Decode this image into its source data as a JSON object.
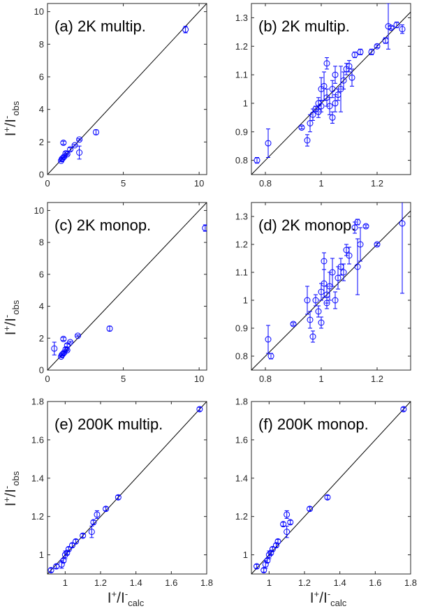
{
  "figure": {
    "ylabel": {
      "base": "I",
      "sup1": "+",
      "mid": "/I",
      "sup2": "-",
      "sub": "obs"
    },
    "xlabel": {
      "base": "I",
      "sup1": "+",
      "mid": "/I",
      "sup2": "-",
      "sub": "calc"
    },
    "marker_color": "#0000ff",
    "line_color": "#000000"
  },
  "chart_data": [
    {
      "type": "scatter",
      "title": "(a)   2K multip.",
      "xlim": [
        0,
        10.5
      ],
      "ylim": [
        0,
        10.5
      ],
      "xticks": [
        0,
        5,
        10
      ],
      "yticks": [
        0,
        2,
        4,
        6,
        8,
        10
      ],
      "tick_labels_x": [
        "0",
        "5",
        "10"
      ],
      "tick_labels_y": [
        "0",
        "2",
        "4",
        "6",
        "8",
        "10"
      ],
      "diagonal": true,
      "points": [
        {
          "x": 9.1,
          "y": 8.9,
          "err": 0.2
        },
        {
          "x": 3.2,
          "y": 2.6,
          "err": 0.15
        },
        {
          "x": 2.1,
          "y": 2.15,
          "err": 0.05
        },
        {
          "x": 2.1,
          "y": 1.35,
          "err": 0.4
        },
        {
          "x": 1.8,
          "y": 1.8,
          "err": 0.05
        },
        {
          "x": 1.5,
          "y": 1.55,
          "err": 0.1
        },
        {
          "x": 1.05,
          "y": 1.95,
          "err": 0.1
        },
        {
          "x": 1.2,
          "y": 1.3,
          "err": 0.1
        },
        {
          "x": 1.1,
          "y": 1.1,
          "err": 0.05
        },
        {
          "x": 1.0,
          "y": 1.0,
          "err": 0.05
        },
        {
          "x": 0.95,
          "y": 0.95,
          "err": 0.05
        },
        {
          "x": 0.9,
          "y": 0.85,
          "err": 0.05
        },
        {
          "x": 1.3,
          "y": 1.25,
          "err": 0.05
        }
      ]
    },
    {
      "type": "scatter",
      "title": "(b)   2K multip.",
      "xlim": [
        0.75,
        1.32
      ],
      "ylim": [
        0.75,
        1.35
      ],
      "xticks": [
        0.8,
        1.0,
        1.2
      ],
      "yticks": [
        0.8,
        0.9,
        1.0,
        1.1,
        1.2,
        1.3
      ],
      "tick_labels_x": [
        "0.8",
        "1",
        "1.2"
      ],
      "tick_labels_y": [
        "0.8",
        "0.9",
        "1",
        "1.1",
        "1.2",
        "1.3"
      ],
      "diagonal": true,
      "points": [
        {
          "x": 0.77,
          "y": 0.8,
          "err": 0.01
        },
        {
          "x": 0.81,
          "y": 0.86,
          "err": 0.05
        },
        {
          "x": 0.93,
          "y": 0.915,
          "err": 0.005
        },
        {
          "x": 0.95,
          "y": 0.87,
          "err": 0.02
        },
        {
          "x": 0.96,
          "y": 0.93,
          "err": 0.03
        },
        {
          "x": 0.97,
          "y": 0.96,
          "err": 0.02
        },
        {
          "x": 0.98,
          "y": 0.98,
          "err": 0.01
        },
        {
          "x": 0.99,
          "y": 1.0,
          "err": 0.02
        },
        {
          "x": 1.0,
          "y": 0.99,
          "err": 0.02
        },
        {
          "x": 1.01,
          "y": 1.06,
          "err": 0.05
        },
        {
          "x": 1.02,
          "y": 1.14,
          "err": 0.02
        },
        {
          "x": 1.02,
          "y": 1.02,
          "err": 0.03
        },
        {
          "x": 1.03,
          "y": 0.99,
          "err": 0.03
        },
        {
          "x": 1.04,
          "y": 0.95,
          "err": 0.02
        },
        {
          "x": 1.04,
          "y": 1.05,
          "err": 0.03
        },
        {
          "x": 1.05,
          "y": 1.1,
          "err": 0.03
        },
        {
          "x": 1.06,
          "y": 1.03,
          "err": 0.02
        },
        {
          "x": 1.07,
          "y": 1.05,
          "err": 0.08
        },
        {
          "x": 1.08,
          "y": 1.08,
          "err": 0.03
        },
        {
          "x": 1.09,
          "y": 1.12,
          "err": 0.02
        },
        {
          "x": 1.1,
          "y": 1.13,
          "err": 0.02
        },
        {
          "x": 1.11,
          "y": 1.09,
          "err": 0.03
        },
        {
          "x": 1.12,
          "y": 1.17,
          "err": 0.01
        },
        {
          "x": 1.14,
          "y": 1.18,
          "err": 0.01
        },
        {
          "x": 1.18,
          "y": 1.18,
          "err": 0.01
        },
        {
          "x": 1.2,
          "y": 1.2,
          "err": 0.005
        },
        {
          "x": 1.23,
          "y": 1.22,
          "err": 0.01
        },
        {
          "x": 1.24,
          "y": 1.27,
          "err": 0.08
        },
        {
          "x": 1.25,
          "y": 1.265,
          "err": 0.005
        },
        {
          "x": 1.27,
          "y": 1.275,
          "err": 0.01
        },
        {
          "x": 1.29,
          "y": 1.26,
          "err": 0.015
        },
        {
          "x": 1.0,
          "y": 1.05,
          "err": 0.04
        },
        {
          "x": 0.99,
          "y": 0.97,
          "err": 0.02
        },
        {
          "x": 1.05,
          "y": 1.0,
          "err": 0.03
        }
      ]
    },
    {
      "type": "scatter",
      "title": "(c)   2K monop.",
      "xlim": [
        0,
        10.5
      ],
      "ylim": [
        0,
        10.5
      ],
      "xticks": [
        0,
        5,
        10
      ],
      "yticks": [
        0,
        2,
        4,
        6,
        8,
        10
      ],
      "tick_labels_x": [
        "0",
        "5",
        "10"
      ],
      "tick_labels_y": [
        "0",
        "2",
        "4",
        "6",
        "8",
        "10"
      ],
      "diagonal": true,
      "points": [
        {
          "x": 10.4,
          "y": 8.9,
          "err": 0.2
        },
        {
          "x": 4.1,
          "y": 2.6,
          "err": 0.15
        },
        {
          "x": 2.0,
          "y": 2.15,
          "err": 0.05
        },
        {
          "x": 0.45,
          "y": 1.35,
          "err": 0.4
        },
        {
          "x": 1.5,
          "y": 1.75,
          "err": 0.05
        },
        {
          "x": 1.3,
          "y": 1.55,
          "err": 0.1
        },
        {
          "x": 1.05,
          "y": 1.95,
          "err": 0.1
        },
        {
          "x": 1.2,
          "y": 1.3,
          "err": 0.1
        },
        {
          "x": 1.1,
          "y": 1.1,
          "err": 0.05
        },
        {
          "x": 1.0,
          "y": 1.0,
          "err": 0.05
        },
        {
          "x": 0.95,
          "y": 0.95,
          "err": 0.05
        },
        {
          "x": 0.9,
          "y": 0.85,
          "err": 0.05
        },
        {
          "x": 1.3,
          "y": 1.25,
          "err": 0.05
        }
      ]
    },
    {
      "type": "scatter",
      "title": "(d)   2K monop.",
      "xlim": [
        0.75,
        1.32
      ],
      "ylim": [
        0.75,
        1.35
      ],
      "xticks": [
        0.8,
        1.0,
        1.2
      ],
      "yticks": [
        0.8,
        0.9,
        1.0,
        1.1,
        1.2,
        1.3
      ],
      "tick_labels_x": [
        "0.8",
        "1",
        "1.2"
      ],
      "tick_labels_y": [
        "0.8",
        "0.9",
        "1",
        "1.1",
        "1.2",
        "1.3"
      ],
      "diagonal": true,
      "points": [
        {
          "x": 0.81,
          "y": 0.86,
          "err": 0.05
        },
        {
          "x": 0.82,
          "y": 0.8,
          "err": 0.01
        },
        {
          "x": 0.9,
          "y": 0.915,
          "err": 0.005
        },
        {
          "x": 0.95,
          "y": 1.0,
          "err": 0.05
        },
        {
          "x": 0.96,
          "y": 0.93,
          "err": 0.03
        },
        {
          "x": 0.97,
          "y": 0.87,
          "err": 0.02
        },
        {
          "x": 0.98,
          "y": 1.0,
          "err": 0.02
        },
        {
          "x": 0.99,
          "y": 0.96,
          "err": 0.02
        },
        {
          "x": 1.0,
          "y": 0.92,
          "err": 0.02
        },
        {
          "x": 1.01,
          "y": 1.06,
          "err": 0.05
        },
        {
          "x": 1.01,
          "y": 1.14,
          "err": 0.03
        },
        {
          "x": 1.02,
          "y": 1.02,
          "err": 0.03
        },
        {
          "x": 1.03,
          "y": 1.05,
          "err": 0.05
        },
        {
          "x": 1.04,
          "y": 1.1,
          "err": 0.05
        },
        {
          "x": 1.05,
          "y": 1.0,
          "err": 0.03
        },
        {
          "x": 1.06,
          "y": 1.08,
          "err": 0.04
        },
        {
          "x": 1.07,
          "y": 1.12,
          "err": 0.03
        },
        {
          "x": 1.08,
          "y": 1.1,
          "err": 0.03
        },
        {
          "x": 1.09,
          "y": 1.18,
          "err": 0.02
        },
        {
          "x": 1.1,
          "y": 1.16,
          "err": 0.03
        },
        {
          "x": 1.12,
          "y": 1.26,
          "err": 0.02
        },
        {
          "x": 1.13,
          "y": 1.28,
          "err": 0.01
        },
        {
          "x": 1.13,
          "y": 1.12,
          "err": 0.1
        },
        {
          "x": 1.14,
          "y": 1.2,
          "err": 0.06
        },
        {
          "x": 1.16,
          "y": 1.265,
          "err": 0.005
        },
        {
          "x": 1.2,
          "y": 1.2,
          "err": 0.005
        },
        {
          "x": 1.29,
          "y": 1.275,
          "err": 0.25
        },
        {
          "x": 1.0,
          "y": 1.03,
          "err": 0.03
        },
        {
          "x": 1.02,
          "y": 0.99,
          "err": 0.02
        }
      ]
    },
    {
      "type": "scatter",
      "title": "(e)   200K multip.",
      "xlim": [
        0.9,
        1.8
      ],
      "ylim": [
        0.9,
        1.8
      ],
      "xticks": [
        1.0,
        1.2,
        1.4,
        1.6,
        1.8
      ],
      "yticks": [
        1.0,
        1.2,
        1.4,
        1.6,
        1.8
      ],
      "tick_labels_x": [
        "1",
        "1.2",
        "1.4",
        "1.6",
        "1.8"
      ],
      "tick_labels_y": [
        "1",
        "1.2",
        "1.4",
        "1.6",
        "1.8"
      ],
      "diagonal": true,
      "points": [
        {
          "x": 1.76,
          "y": 1.76,
          "err": 0.01
        },
        {
          "x": 1.3,
          "y": 1.3,
          "err": 0.01
        },
        {
          "x": 1.23,
          "y": 1.24,
          "err": 0.01
        },
        {
          "x": 1.18,
          "y": 1.21,
          "err": 0.02
        },
        {
          "x": 1.16,
          "y": 1.17,
          "err": 0.01
        },
        {
          "x": 1.15,
          "y": 1.12,
          "err": 0.03
        },
        {
          "x": 1.1,
          "y": 1.1,
          "err": 0.01
        },
        {
          "x": 1.06,
          "y": 1.07,
          "err": 0.01
        },
        {
          "x": 1.04,
          "y": 1.05,
          "err": 0.01
        },
        {
          "x": 1.02,
          "y": 1.03,
          "err": 0.01
        },
        {
          "x": 1.0,
          "y": 1.0,
          "err": 0.02
        },
        {
          "x": 0.99,
          "y": 0.97,
          "err": 0.01
        },
        {
          "x": 0.98,
          "y": 0.95,
          "err": 0.02
        },
        {
          "x": 0.95,
          "y": 0.94,
          "err": 0.01
        },
        {
          "x": 0.92,
          "y": 0.92,
          "err": 0.01
        },
        {
          "x": 1.01,
          "y": 1.01,
          "err": 0.01
        }
      ]
    },
    {
      "type": "scatter",
      "title": "(f)   200K monop.",
      "xlim": [
        0.9,
        1.8
      ],
      "ylim": [
        0.9,
        1.8
      ],
      "xticks": [
        1.0,
        1.2,
        1.4,
        1.6,
        1.8
      ],
      "yticks": [
        1.0,
        1.2,
        1.4,
        1.6,
        1.8
      ],
      "tick_labels_x": [
        "1",
        "1.2",
        "1.4",
        "1.6",
        "1.8"
      ],
      "tick_labels_y": [
        "1",
        "1.2",
        "1.4",
        "1.6",
        "1.8"
      ],
      "diagonal": true,
      "points": [
        {
          "x": 1.76,
          "y": 1.76,
          "err": 0.01
        },
        {
          "x": 1.33,
          "y": 1.3,
          "err": 0.01
        },
        {
          "x": 1.23,
          "y": 1.24,
          "err": 0.01
        },
        {
          "x": 1.1,
          "y": 1.21,
          "err": 0.02
        },
        {
          "x": 1.12,
          "y": 1.17,
          "err": 0.01
        },
        {
          "x": 1.1,
          "y": 1.12,
          "err": 0.03
        },
        {
          "x": 1.08,
          "y": 1.16,
          "err": 0.01
        },
        {
          "x": 1.05,
          "y": 1.07,
          "err": 0.01
        },
        {
          "x": 1.04,
          "y": 1.05,
          "err": 0.01
        },
        {
          "x": 1.02,
          "y": 1.03,
          "err": 0.01
        },
        {
          "x": 1.0,
          "y": 1.0,
          "err": 0.02
        },
        {
          "x": 0.99,
          "y": 0.97,
          "err": 0.01
        },
        {
          "x": 0.98,
          "y": 0.95,
          "err": 0.02
        },
        {
          "x": 0.97,
          "y": 0.92,
          "err": 0.01
        },
        {
          "x": 0.93,
          "y": 0.94,
          "err": 0.01
        },
        {
          "x": 1.01,
          "y": 1.01,
          "err": 0.01
        }
      ]
    }
  ]
}
